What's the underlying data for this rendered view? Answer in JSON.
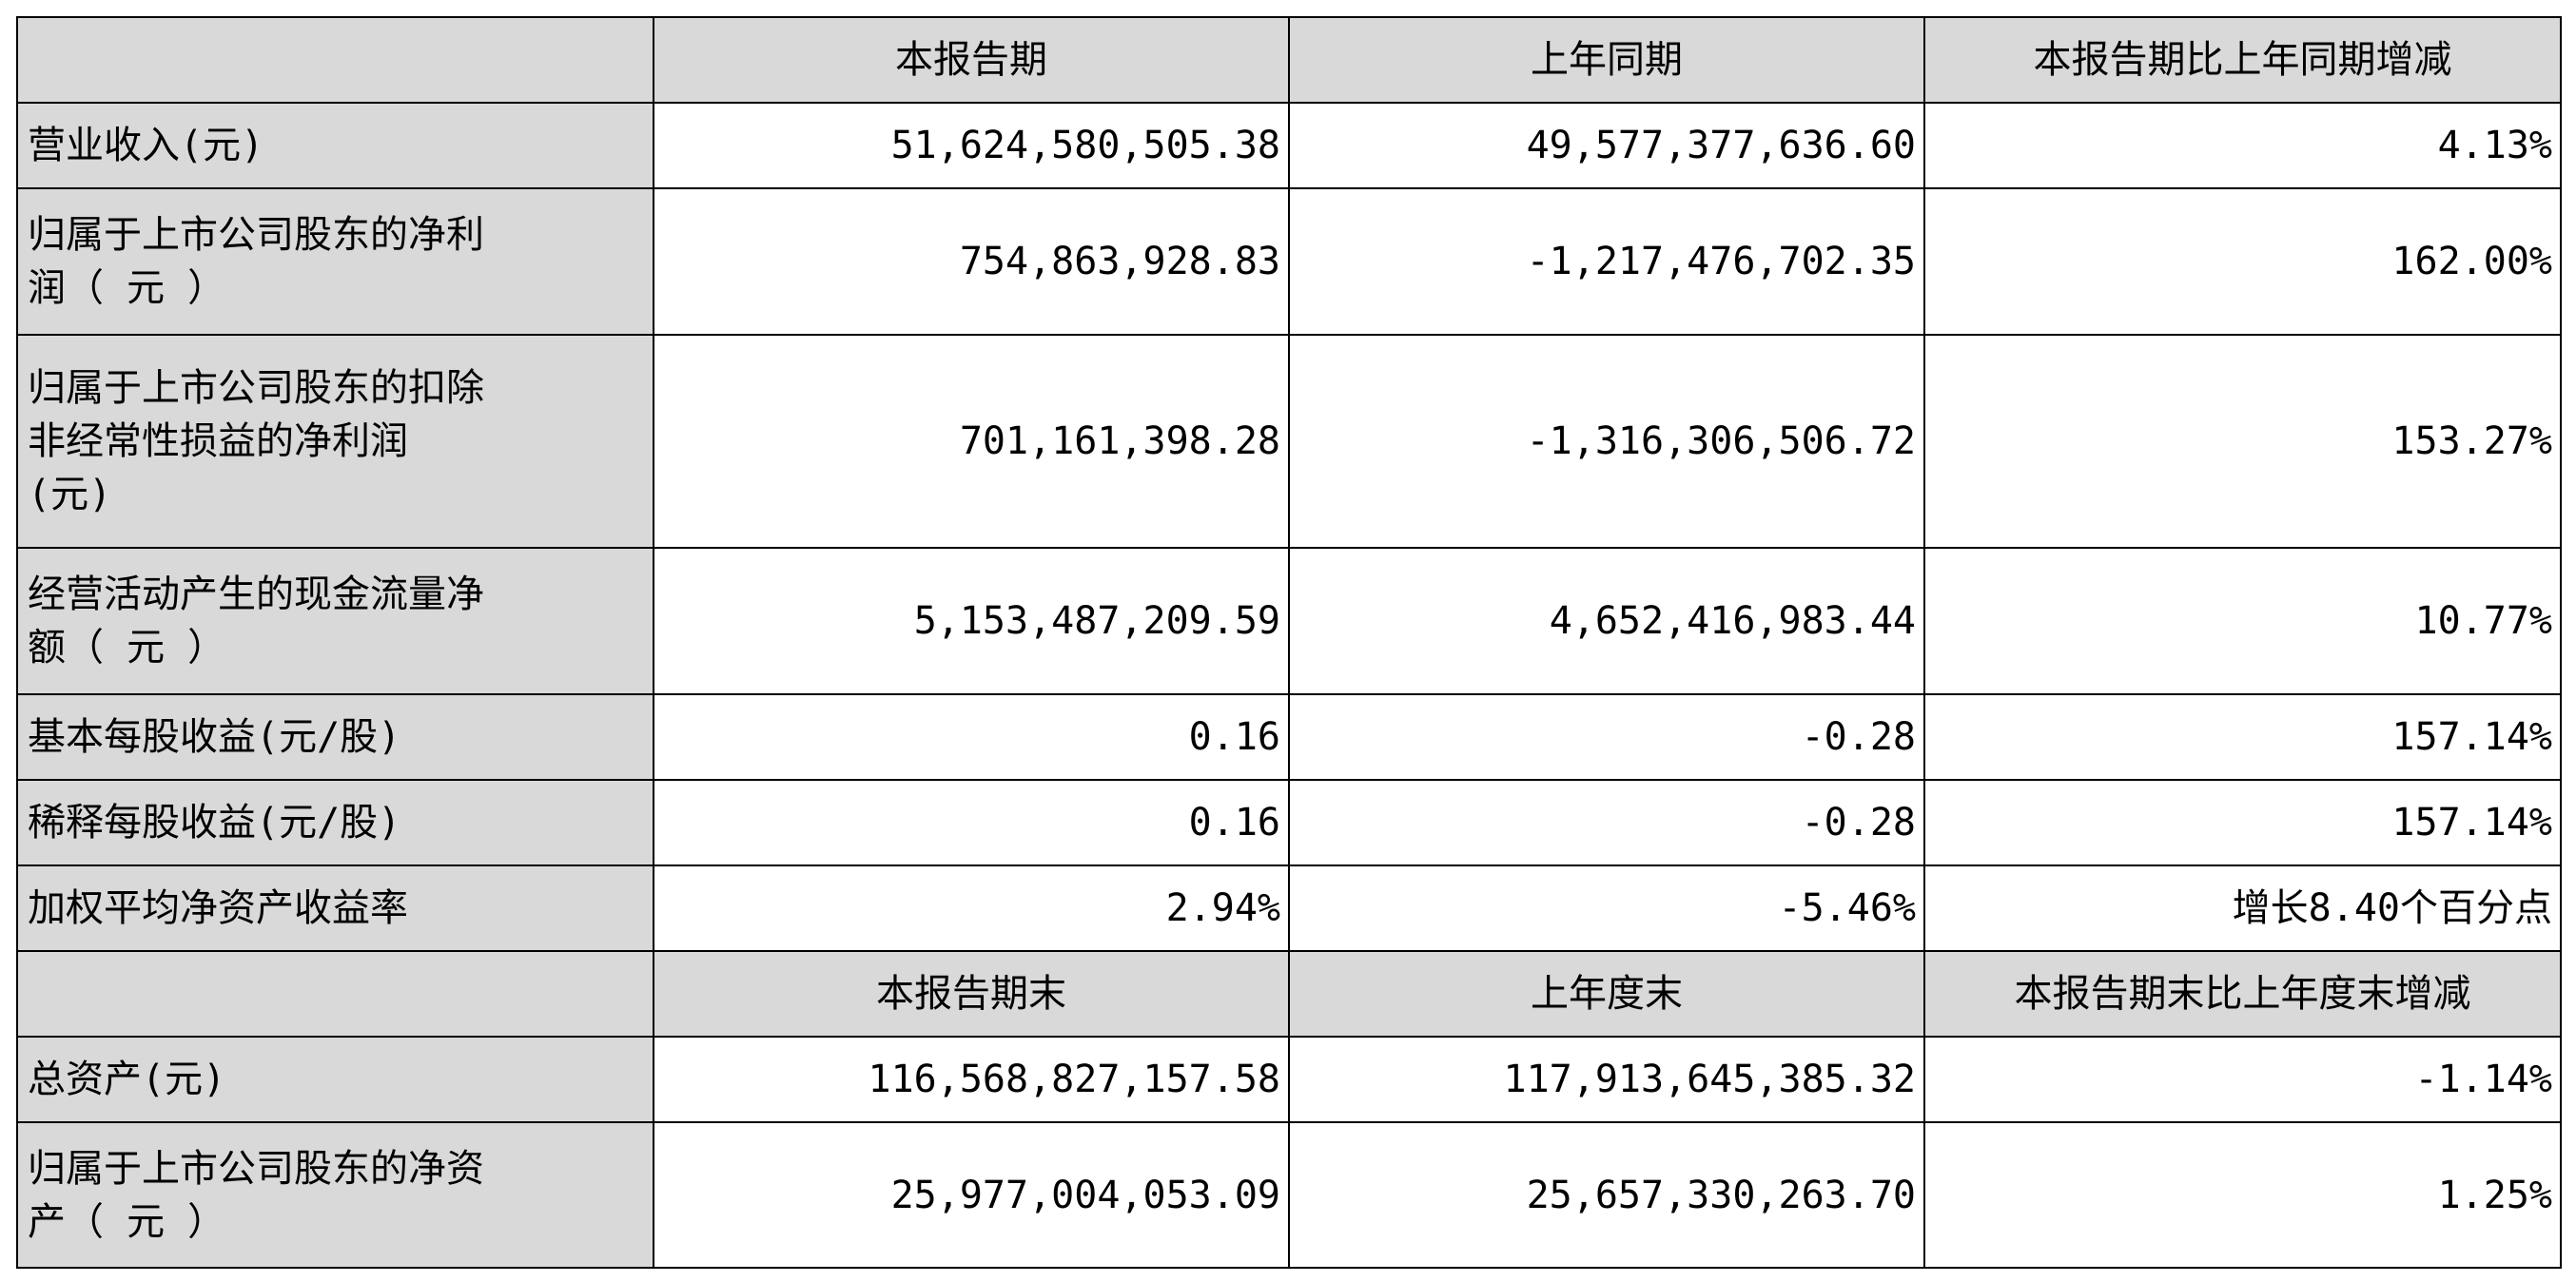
{
  "sections": [
    {
      "header": [
        "本报告期",
        "上年同期",
        "本报告期比上年同期增减"
      ],
      "rows": [
        {
          "label": [
            "营业收入(元)"
          ],
          "values": [
            "51,624,580,505.38",
            "49,577,377,636.60",
            "4.13%"
          ]
        },
        {
          "label": [
            "归属于上市公司股东的净利",
            "润（ 元 ）"
          ],
          "values": [
            "754,863,928.83",
            "-1,217,476,702.35",
            "162.00%"
          ]
        },
        {
          "label": [
            "归属于上市公司股东的扣除",
            "非经常性损益的净利润",
            "(元)"
          ],
          "values": [
            "701,161,398.28",
            "-1,316,306,506.72",
            "153.27%"
          ]
        },
        {
          "label": [
            "经营活动产生的现金流量净",
            "额（ 元 ）"
          ],
          "values": [
            "5,153,487,209.59",
            "4,652,416,983.44",
            "10.77%"
          ]
        },
        {
          "label": [
            "基本每股收益(元/股)"
          ],
          "values": [
            "0.16",
            "-0.28",
            "157.14%"
          ]
        },
        {
          "label": [
            "稀释每股收益(元/股)"
          ],
          "values": [
            "0.16",
            "-0.28",
            "157.14%"
          ]
        },
        {
          "label": [
            "加权平均净资产收益率"
          ],
          "values": [
            "2.94%",
            "-5.46%",
            "增长8.40个百分点"
          ]
        }
      ]
    },
    {
      "header": [
        "本报告期末",
        "上年度末",
        "本报告期末比上年度末增减"
      ],
      "rows": [
        {
          "label": [
            "总资产(元)"
          ],
          "values": [
            "116,568,827,157.58",
            "117,913,645,385.32",
            "-1.14%"
          ]
        },
        {
          "label": [
            "归属于上市公司股东的净资",
            "产（ 元 ）"
          ],
          "values": [
            "25,977,004,053.09",
            "25,657,330,263.70",
            "1.25%"
          ]
        }
      ]
    }
  ]
}
